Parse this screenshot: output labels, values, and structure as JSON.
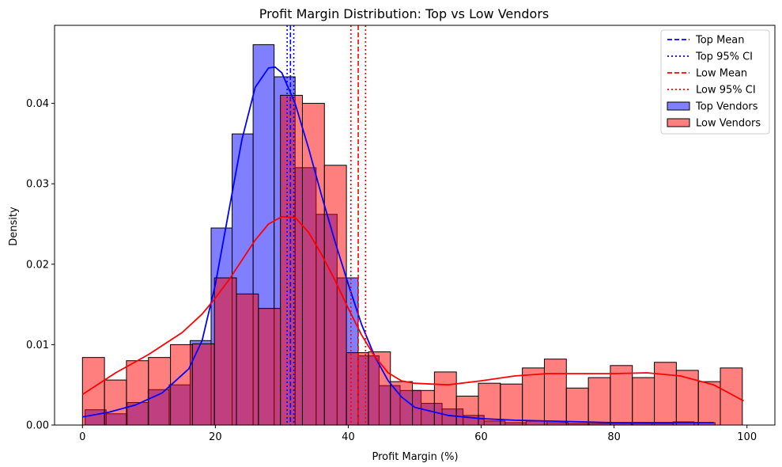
{
  "chart_data": {
    "type": "bar",
    "title": "Profit Margin Distribution: Top vs Low Vendors",
    "xlabel": "Profit Margin (%)",
    "ylabel": "Density",
    "xlim": [
      -4.2,
      104.2
    ],
    "ylim": [
      0,
      0.0497
    ],
    "xticks": [
      0,
      20,
      40,
      60,
      80,
      100
    ],
    "yticks": [
      0.0,
      0.01,
      0.02,
      0.03,
      0.04
    ],
    "ytick_labels": [
      "0.00",
      "0.01",
      "0.02",
      "0.03",
      "0.04"
    ],
    "grid": false,
    "legend_position": "top-right",
    "series": [
      {
        "name": "Top Vendors",
        "kind": "histogram",
        "color": "#0000ff",
        "bin_start": 0.4,
        "bin_width": 3.16,
        "values": [
          0.0019,
          0.0014,
          0.0028,
          0.0044,
          0.005,
          0.0105,
          0.0245,
          0.0362,
          0.0473,
          0.0433,
          0.032,
          0.0262,
          0.0183,
          0.0086,
          0.0049,
          0.0043,
          0.0027,
          0.002,
          0.0012,
          0.0005,
          0.0003,
          0.0005,
          0.0003,
          0.0002,
          0.0002,
          0.0002,
          0.0002,
          0.0002,
          0.0004,
          0.0003
        ]
      },
      {
        "name": "Low Vendors",
        "kind": "histogram",
        "color": "#ff0000",
        "bin_start": 0,
        "bin_width": 3.31,
        "values": [
          0.0084,
          0.0056,
          0.008,
          0.0084,
          0.01,
          0.0101,
          0.0183,
          0.0163,
          0.0145,
          0.041,
          0.04,
          0.0323,
          0.009,
          0.0091,
          0.0054,
          0.0043,
          0.0066,
          0.0036,
          0.0052,
          0.0051,
          0.0071,
          0.0082,
          0.0046,
          0.0059,
          0.0074,
          0.0059,
          0.0078,
          0.0068,
          0.0054,
          0.0071
        ]
      },
      {
        "name": "Top Vendors KDE",
        "kind": "line",
        "color": "#0000ff",
        "x": [
          0,
          4,
          8,
          12,
          16,
          18,
          20,
          22,
          24,
          26,
          28,
          29,
          30,
          32,
          34,
          36,
          38,
          40,
          42,
          44,
          46,
          48,
          50,
          55,
          60,
          65,
          70,
          80,
          90,
          95
        ],
        "y": [
          0.001,
          0.0016,
          0.0025,
          0.004,
          0.007,
          0.0105,
          0.0175,
          0.0265,
          0.0355,
          0.042,
          0.0444,
          0.0445,
          0.0438,
          0.04,
          0.0345,
          0.0285,
          0.0228,
          0.0175,
          0.0125,
          0.0085,
          0.0055,
          0.0035,
          0.0022,
          0.0012,
          0.0008,
          0.0006,
          0.0005,
          0.0003,
          0.0003,
          0.0003
        ]
      },
      {
        "name": "Low Vendors KDE",
        "kind": "line",
        "color": "#ff0000",
        "x": [
          0,
          5,
          10,
          15,
          18,
          20,
          22,
          24,
          26,
          28,
          30,
          32,
          34,
          36,
          38,
          40,
          42,
          44,
          46,
          48,
          50,
          55,
          60,
          65,
          70,
          75,
          80,
          85,
          90,
          95,
          99.5
        ],
        "y": [
          0.0038,
          0.0065,
          0.0088,
          0.0115,
          0.0138,
          0.0158,
          0.018,
          0.0205,
          0.023,
          0.025,
          0.0259,
          0.0258,
          0.024,
          0.0212,
          0.018,
          0.0145,
          0.0112,
          0.0085,
          0.0065,
          0.0055,
          0.0052,
          0.005,
          0.0055,
          0.0061,
          0.0064,
          0.0064,
          0.0064,
          0.0065,
          0.0061,
          0.005,
          0.003
        ]
      },
      {
        "name": "Top Mean",
        "kind": "vline",
        "style": "dashed",
        "color": "#0000ff",
        "x": 31.3
      },
      {
        "name": "Top 95% CI",
        "kind": "vline",
        "style": "dotted",
        "color": "#0000ff",
        "x": [
          30.8,
          31.8
        ]
      },
      {
        "name": "Low Mean",
        "kind": "vline",
        "style": "dashed",
        "color": "#ff0000",
        "x": 41.5
      },
      {
        "name": "Low 95% CI",
        "kind": "vline",
        "style": "dotted",
        "color": "#ff0000",
        "x": [
          40.4,
          42.6
        ]
      }
    ],
    "legend": [
      {
        "label": "Top Mean",
        "kind": "line",
        "style": "dashed",
        "color": "#0000ff"
      },
      {
        "label": "Top 95% CI",
        "kind": "line",
        "style": "dotted",
        "color": "#0000ff"
      },
      {
        "label": "Low Mean",
        "kind": "line",
        "style": "dashed",
        "color": "#ff0000"
      },
      {
        "label": "Low 95% CI",
        "kind": "line",
        "style": "dotted",
        "color": "#ff0000"
      },
      {
        "label": "Top Vendors",
        "kind": "patch",
        "color": "#0000ff"
      },
      {
        "label": "Low Vendors",
        "kind": "patch",
        "color": "#ff0000"
      }
    ]
  }
}
